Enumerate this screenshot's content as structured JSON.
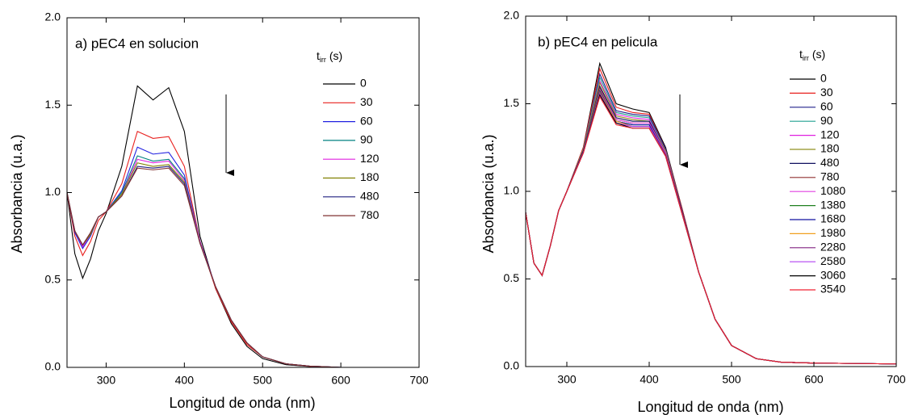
{
  "chart_data": [
    {
      "type": "line",
      "title": "a) pEC4 en solucion",
      "xlabel": "Longitud de onda (nm)",
      "ylabel": "Absorbancia (u.a.)",
      "legend_title": {
        "main": "t",
        "sub": "irr",
        "suffix": "(s)"
      },
      "xlim": [
        250,
        700
      ],
      "xticks": [
        300,
        400,
        500,
        600,
        700
      ],
      "ylim": [
        0,
        2
      ],
      "yticks": [
        {
          "value": 0,
          "label": "0.0"
        },
        0.5,
        {
          "value": 1,
          "label": "1.0"
        },
        1.5,
        {
          "value": 2,
          "label": "2.0"
        }
      ],
      "x": [
        250,
        260,
        270,
        280,
        290,
        300,
        320,
        340,
        360,
        380,
        400,
        420,
        440,
        460,
        480,
        500,
        530,
        560,
        600,
        700
      ],
      "series": [
        {
          "name": "0",
          "color": "#000000",
          "values": [
            1.0,
            0.65,
            0.51,
            0.62,
            0.78,
            0.88,
            1.15,
            1.61,
            1.53,
            1.6,
            1.35,
            0.75,
            0.45,
            0.25,
            0.12,
            0.05,
            0.015,
            0.005,
            0,
            0
          ]
        },
        {
          "name": "30",
          "color": "#e8201e",
          "values": [
            1.0,
            0.75,
            0.64,
            0.72,
            0.84,
            0.89,
            1.05,
            1.35,
            1.31,
            1.32,
            1.15,
            0.72,
            0.45,
            0.26,
            0.13,
            0.06,
            0.02,
            0.006,
            0,
            0
          ]
        },
        {
          "name": "60",
          "color": "#2020e0",
          "values": [
            1.0,
            0.77,
            0.68,
            0.75,
            0.86,
            0.89,
            1.01,
            1.26,
            1.22,
            1.23,
            1.1,
            0.72,
            0.46,
            0.27,
            0.14,
            0.06,
            0.02,
            0.007,
            0,
            0
          ]
        },
        {
          "name": "90",
          "color": "#008080",
          "values": [
            1.0,
            0.78,
            0.69,
            0.76,
            0.86,
            0.89,
            1.0,
            1.21,
            1.18,
            1.19,
            1.08,
            0.72,
            0.46,
            0.27,
            0.14,
            0.06,
            0.02,
            0.007,
            0,
            0
          ]
        },
        {
          "name": "120",
          "color": "#e020e0",
          "values": [
            1.0,
            0.78,
            0.69,
            0.76,
            0.86,
            0.89,
            0.99,
            1.19,
            1.17,
            1.18,
            1.07,
            0.72,
            0.46,
            0.27,
            0.14,
            0.06,
            0.02,
            0.007,
            0,
            0
          ]
        },
        {
          "name": "180",
          "color": "#808000",
          "values": [
            1.0,
            0.78,
            0.7,
            0.76,
            0.86,
            0.89,
            0.99,
            1.17,
            1.15,
            1.16,
            1.06,
            0.71,
            0.46,
            0.27,
            0.14,
            0.06,
            0.02,
            0.007,
            0,
            0
          ]
        },
        {
          "name": "480",
          "color": "#202080",
          "values": [
            1.0,
            0.78,
            0.7,
            0.77,
            0.86,
            0.89,
            0.98,
            1.15,
            1.14,
            1.15,
            1.05,
            0.71,
            0.46,
            0.27,
            0.14,
            0.06,
            0.02,
            0.007,
            0,
            0
          ]
        },
        {
          "name": "780",
          "color": "#803030",
          "values": [
            1.0,
            0.78,
            0.7,
            0.77,
            0.86,
            0.89,
            0.98,
            1.14,
            1.13,
            1.14,
            1.04,
            0.71,
            0.46,
            0.27,
            0.14,
            0.06,
            0.02,
            0.007,
            0,
            0
          ]
        }
      ]
    },
    {
      "type": "line",
      "title": "b) pEC4 en pelicula",
      "xlabel": "Longitud de onda (nm)",
      "ylabel": "Absorbancia (u.a.)",
      "legend_title": {
        "main": "t",
        "sub": "irr",
        "suffix": "(s)"
      },
      "xlim": [
        250,
        700
      ],
      "xticks": [
        300,
        400,
        500,
        600,
        700
      ],
      "ylim": [
        0,
        2
      ],
      "yticks": [
        {
          "value": 0,
          "label": "0.0"
        },
        0.5,
        {
          "value": 1,
          "label": "1.0"
        },
        1.5,
        {
          "value": 2,
          "label": "2.0"
        }
      ],
      "x": [
        250,
        260,
        270,
        280,
        290,
        300,
        320,
        340,
        360,
        380,
        400,
        420,
        440,
        460,
        480,
        500,
        530,
        560,
        600,
        700
      ],
      "series": [
        {
          "name": "0",
          "color": "#000000",
          "values": [
            0.88,
            0.59,
            0.52,
            0.69,
            0.89,
            1.0,
            1.25,
            1.73,
            1.5,
            1.47,
            1.45,
            1.25,
            0.9,
            0.54,
            0.27,
            0.12,
            0.045,
            0.025,
            0.02,
            0.015
          ]
        },
        {
          "name": "30",
          "color": "#e8201e",
          "values": [
            0.88,
            0.59,
            0.52,
            0.69,
            0.89,
            1.0,
            1.25,
            1.7,
            1.48,
            1.45,
            1.44,
            1.24,
            0.9,
            0.54,
            0.27,
            0.12,
            0.045,
            0.025,
            0.02,
            0.015
          ]
        },
        {
          "name": "60",
          "color": "#20208c",
          "values": [
            0.88,
            0.59,
            0.52,
            0.69,
            0.89,
            1.0,
            1.24,
            1.67,
            1.46,
            1.44,
            1.43,
            1.24,
            0.89,
            0.54,
            0.27,
            0.12,
            0.045,
            0.025,
            0.02,
            0.015
          ]
        },
        {
          "name": "90",
          "color": "#20a090",
          "values": [
            0.88,
            0.59,
            0.52,
            0.69,
            0.89,
            1.0,
            1.24,
            1.65,
            1.45,
            1.43,
            1.42,
            1.23,
            0.89,
            0.54,
            0.27,
            0.12,
            0.045,
            0.025,
            0.02,
            0.015
          ]
        },
        {
          "name": "120",
          "color": "#e020e0",
          "values": [
            0.88,
            0.59,
            0.52,
            0.69,
            0.89,
            1.0,
            1.24,
            1.63,
            1.44,
            1.42,
            1.41,
            1.23,
            0.89,
            0.54,
            0.27,
            0.12,
            0.045,
            0.025,
            0.02,
            0.015
          ]
        },
        {
          "name": "180",
          "color": "#909020",
          "values": [
            0.88,
            0.59,
            0.52,
            0.69,
            0.89,
            1.0,
            1.24,
            1.62,
            1.43,
            1.41,
            1.4,
            1.23,
            0.89,
            0.54,
            0.27,
            0.12,
            0.045,
            0.025,
            0.02,
            0.015
          ]
        },
        {
          "name": "480",
          "color": "#101060",
          "values": [
            0.88,
            0.59,
            0.52,
            0.69,
            0.89,
            1.0,
            1.23,
            1.6,
            1.42,
            1.4,
            1.4,
            1.22,
            0.89,
            0.54,
            0.27,
            0.12,
            0.045,
            0.025,
            0.02,
            0.015
          ]
        },
        {
          "name": "780",
          "color": "#903030",
          "values": [
            0.88,
            0.59,
            0.52,
            0.69,
            0.89,
            1.0,
            1.23,
            1.59,
            1.41,
            1.39,
            1.39,
            1.22,
            0.88,
            0.54,
            0.27,
            0.12,
            0.045,
            0.025,
            0.02,
            0.015
          ]
        },
        {
          "name": "1080",
          "color": "#e040e0",
          "values": [
            0.88,
            0.59,
            0.52,
            0.69,
            0.89,
            1.0,
            1.23,
            1.58,
            1.41,
            1.39,
            1.39,
            1.22,
            0.88,
            0.54,
            0.27,
            0.12,
            0.045,
            0.025,
            0.02,
            0.015
          ]
        },
        {
          "name": "1380",
          "color": "#208020",
          "values": [
            0.88,
            0.59,
            0.52,
            0.69,
            0.89,
            1.0,
            1.23,
            1.575,
            1.4,
            1.38,
            1.38,
            1.21,
            0.88,
            0.54,
            0.27,
            0.12,
            0.045,
            0.025,
            0.02,
            0.015
          ]
        },
        {
          "name": "1680",
          "color": "#1010a0",
          "values": [
            0.88,
            0.59,
            0.52,
            0.69,
            0.89,
            1.0,
            1.23,
            1.57,
            1.4,
            1.38,
            1.38,
            1.21,
            0.88,
            0.54,
            0.27,
            0.12,
            0.045,
            0.025,
            0.02,
            0.015
          ]
        },
        {
          "name": "1980",
          "color": "#f0a020",
          "values": [
            0.88,
            0.59,
            0.52,
            0.69,
            0.89,
            1.0,
            1.22,
            1.565,
            1.4,
            1.37,
            1.37,
            1.21,
            0.88,
            0.54,
            0.27,
            0.12,
            0.045,
            0.025,
            0.02,
            0.015
          ]
        },
        {
          "name": "2280",
          "color": "#802080",
          "values": [
            0.88,
            0.59,
            0.52,
            0.69,
            0.89,
            1.0,
            1.22,
            1.56,
            1.39,
            1.37,
            1.37,
            1.21,
            0.88,
            0.54,
            0.27,
            0.12,
            0.045,
            0.025,
            0.02,
            0.015
          ]
        },
        {
          "name": "2580",
          "color": "#b040f0",
          "values": [
            0.88,
            0.59,
            0.52,
            0.69,
            0.89,
            1.0,
            1.22,
            1.555,
            1.39,
            1.37,
            1.37,
            1.2,
            0.87,
            0.54,
            0.27,
            0.12,
            0.045,
            0.025,
            0.02,
            0.015
          ]
        },
        {
          "name": "3060",
          "color": "#000000",
          "values": [
            0.88,
            0.59,
            0.52,
            0.69,
            0.89,
            1.0,
            1.22,
            1.55,
            1.39,
            1.36,
            1.36,
            1.2,
            0.87,
            0.54,
            0.27,
            0.12,
            0.045,
            0.025,
            0.02,
            0.015
          ]
        },
        {
          "name": "3540",
          "color": "#f02030",
          "values": [
            0.88,
            0.59,
            0.52,
            0.69,
            0.89,
            1.0,
            1.22,
            1.54,
            1.38,
            1.36,
            1.36,
            1.2,
            0.87,
            0.54,
            0.27,
            0.12,
            0.045,
            0.025,
            0.02,
            0.015
          ]
        }
      ]
    }
  ]
}
